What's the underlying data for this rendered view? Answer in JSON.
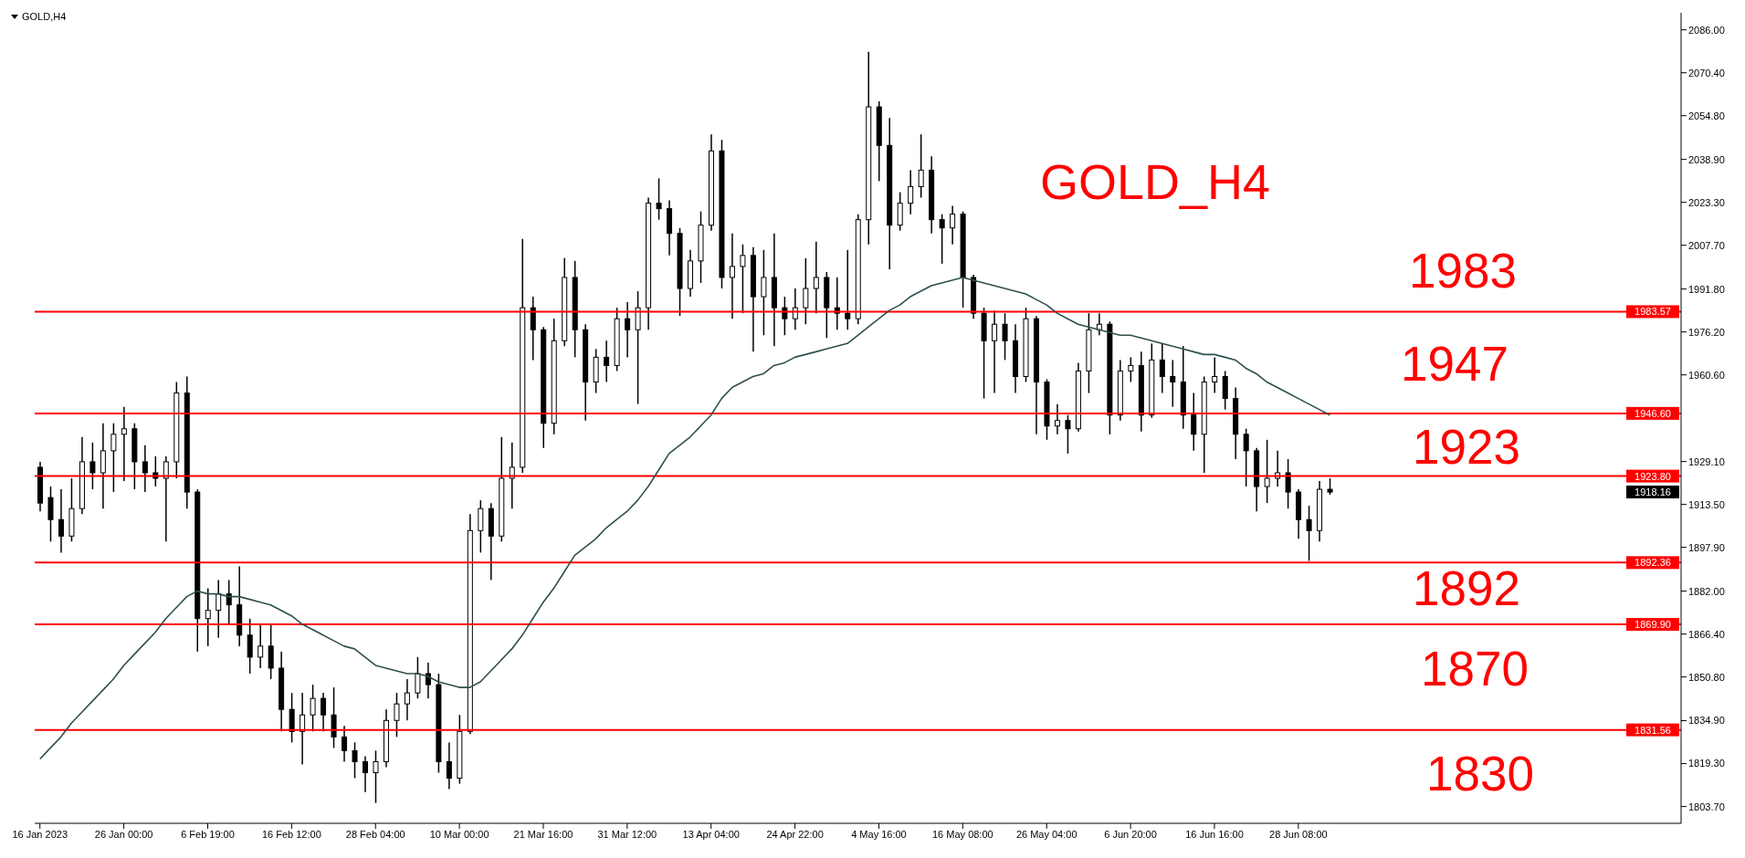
{
  "chart_data": {
    "type": "candlestick",
    "title": "GOLD,H4",
    "color": "#000000",
    "categories": [
      "16 Jan 2023",
      null,
      null,
      null,
      null,
      null,
      null,
      null,
      "26 Jan 00:00",
      null,
      null,
      null,
      null,
      null,
      null,
      null,
      "6 Feb 19:00",
      null,
      null,
      null,
      null,
      null,
      null,
      null,
      "16 Feb 12:00",
      null,
      null,
      null,
      null,
      null,
      null,
      null,
      "28 Feb 04:00",
      null,
      null,
      null,
      null,
      null,
      null,
      null,
      "10 Mar 00:00",
      null,
      null,
      null,
      null,
      null,
      null,
      null,
      "21 Mar 16:00",
      null,
      null,
      null,
      null,
      null,
      null,
      null,
      "31 Mar 12:00",
      null,
      null,
      null,
      null,
      null,
      null,
      null,
      "13 Apr 04:00",
      null,
      null,
      null,
      null,
      null,
      null,
      null,
      "24 Apr 22:00",
      null,
      null,
      null,
      null,
      null,
      null,
      null,
      "4 May 16:00",
      null,
      null,
      null,
      null,
      null,
      null,
      null,
      "16 May 08:00",
      null,
      null,
      null,
      null,
      null,
      null,
      null,
      "26 May 04:00",
      null,
      null,
      null,
      null,
      null,
      null,
      null,
      "6 Jun 20:00",
      null,
      null,
      null,
      null,
      null,
      null,
      null,
      "16 Jun 16:00",
      null,
      null,
      null,
      null,
      null,
      null,
      null,
      "28 Jun 08:00",
      null,
      null,
      null
    ],
    "ohlc": [
      [
        1927,
        1929,
        1911,
        1914
      ],
      [
        1916,
        1920,
        1900,
        1908
      ],
      [
        1908,
        1919,
        1896,
        1902
      ],
      [
        1902,
        1923,
        1900,
        1912
      ],
      [
        1912,
        1938,
        1910,
        1929
      ],
      [
        1929,
        1936,
        1919,
        1925
      ],
      [
        1925,
        1943,
        1912,
        1933
      ],
      [
        1933,
        1943,
        1918,
        1939
      ],
      [
        1939,
        1949,
        1922,
        1941
      ],
      [
        1941,
        1943,
        1919,
        1929
      ],
      [
        1929,
        1935,
        1918,
        1925
      ],
      [
        1925,
        1931,
        1920,
        1923
      ],
      [
        1923,
        1931,
        1900,
        1929
      ],
      [
        1929,
        1958,
        1923,
        1954
      ],
      [
        1954,
        1960,
        1912,
        1918
      ],
      [
        1918,
        1919,
        1860,
        1872
      ],
      [
        1872,
        1883,
        1862,
        1875
      ],
      [
        1875,
        1886,
        1865,
        1881
      ],
      [
        1881,
        1886,
        1870,
        1877
      ],
      [
        1877,
        1891,
        1862,
        1866
      ],
      [
        1866,
        1872,
        1852,
        1858
      ],
      [
        1858,
        1870,
        1854,
        1862
      ],
      [
        1862,
        1870,
        1850,
        1854
      ],
      [
        1854,
        1860,
        1831,
        1839
      ],
      [
        1839,
        1845,
        1827,
        1831
      ],
      [
        1831,
        1845,
        1819,
        1837
      ],
      [
        1837,
        1848,
        1831,
        1843
      ],
      [
        1843,
        1845,
        1831,
        1837
      ],
      [
        1837,
        1847,
        1825,
        1829
      ],
      [
        1829,
        1833,
        1820,
        1824
      ],
      [
        1824,
        1827,
        1814,
        1820
      ],
      [
        1820,
        1822,
        1809,
        1816
      ],
      [
        1816,
        1824,
        1805,
        1820
      ],
      [
        1820,
        1839,
        1818,
        1835
      ],
      [
        1835,
        1845,
        1829,
        1841
      ],
      [
        1841,
        1850,
        1835,
        1845
      ],
      [
        1845,
        1858,
        1843,
        1852
      ],
      [
        1852,
        1856,
        1843,
        1848
      ],
      [
        1848,
        1852,
        1816,
        1820
      ],
      [
        1820,
        1827,
        1810,
        1814
      ],
      [
        1814,
        1837,
        1812,
        1831
      ],
      [
        1831,
        1910,
        1830,
        1904
      ],
      [
        1904,
        1915,
        1896,
        1912
      ],
      [
        1912,
        1914,
        1886,
        1902
      ],
      [
        1902,
        1938,
        1900,
        1923
      ],
      [
        1923,
        1936,
        1912,
        1927
      ],
      [
        1927,
        2010,
        1925,
        1985
      ],
      [
        1985,
        1989,
        1966,
        1977
      ],
      [
        1977,
        1978,
        1934,
        1943
      ],
      [
        1943,
        1981,
        1939,
        1973
      ],
      [
        1973,
        2003,
        1971,
        1996
      ],
      [
        1996,
        2002,
        1967,
        1977
      ],
      [
        1977,
        1979,
        1944,
        1958
      ],
      [
        1958,
        1970,
        1954,
        1967
      ],
      [
        1967,
        1973,
        1958,
        1964
      ],
      [
        1964,
        1985,
        1962,
        1981
      ],
      [
        1981,
        1987,
        1967,
        1977
      ],
      [
        1977,
        1991,
        1950,
        1985
      ],
      [
        1985,
        2025,
        1977,
        2023
      ],
      [
        2023,
        2032,
        2017,
        2021
      ],
      [
        2021,
        2024,
        2004,
        2012
      ],
      [
        2012,
        2014,
        1982,
        1992
      ],
      [
        1992,
        2006,
        1989,
        2002
      ],
      [
        2002,
        2020,
        1994,
        2015
      ],
      [
        2015,
        2048,
        2013,
        2042
      ],
      [
        2042,
        2046,
        1992,
        1996
      ],
      [
        1996,
        2012,
        1981,
        2000
      ],
      [
        2000,
        2008,
        1983,
        2004
      ],
      [
        2004,
        2007,
        1969,
        1989
      ],
      [
        1989,
        2006,
        1975,
        1996
      ],
      [
        1996,
        2012,
        1971,
        1985
      ],
      [
        1985,
        1989,
        1975,
        1981
      ],
      [
        1981,
        1992,
        1977,
        1985
      ],
      [
        1985,
        2003,
        1979,
        1992
      ],
      [
        1992,
        2009,
        1983,
        1996
      ],
      [
        1996,
        1998,
        1974,
        1985
      ],
      [
        1985,
        1996,
        1977,
        1983
      ],
      [
        1983,
        2006,
        1977,
        1981
      ],
      [
        1981,
        2019,
        1979,
        2017
      ],
      [
        2017,
        2078,
        2008,
        2058
      ],
      [
        2058,
        2060,
        2031,
        2044
      ],
      [
        2044,
        2054,
        1999,
        2015
      ],
      [
        2015,
        2027,
        2013,
        2023
      ],
      [
        2023,
        2035,
        2019,
        2029
      ],
      [
        2029,
        2048,
        2025,
        2035
      ],
      [
        2035,
        2040,
        2012,
        2017
      ],
      [
        2017,
        2019,
        2001,
        2014
      ],
      [
        2014,
        2022,
        2008,
        2019
      ],
      [
        2019,
        2020,
        1985,
        1996
      ],
      [
        1996,
        1997,
        1981,
        1983
      ],
      [
        1983,
        1985,
        1952,
        1973
      ],
      [
        1973,
        1984,
        1954,
        1979
      ],
      [
        1979,
        1983,
        1966,
        1973
      ],
      [
        1973,
        1979,
        1954,
        1960
      ],
      [
        1960,
        1985,
        1958,
        1981
      ],
      [
        1981,
        1982,
        1939,
        1958
      ],
      [
        1958,
        1959,
        1937,
        1942
      ],
      [
        1942,
        1950,
        1939,
        1944
      ],
      [
        1944,
        1946,
        1932,
        1941
      ],
      [
        1941,
        1965,
        1940,
        1962
      ],
      [
        1962,
        1983,
        1954,
        1977
      ],
      [
        1977,
        1983,
        1975,
        1979
      ],
      [
        1979,
        1980,
        1939,
        1946
      ],
      [
        1946,
        1966,
        1944,
        1962
      ],
      [
        1962,
        1967,
        1958,
        1964
      ],
      [
        1964,
        1969,
        1940,
        1946
      ],
      [
        1946,
        1972,
        1945,
        1966
      ],
      [
        1966,
        1972,
        1954,
        1960
      ],
      [
        1960,
        1966,
        1949,
        1958
      ],
      [
        1958,
        1971,
        1941,
        1946
      ],
      [
        1946,
        1954,
        1933,
        1939
      ],
      [
        1939,
        1960,
        1925,
        1958
      ],
      [
        1958,
        1967,
        1954,
        1960
      ],
      [
        1960,
        1962,
        1948,
        1952
      ],
      [
        1952,
        1956,
        1930,
        1939
      ],
      [
        1939,
        1941,
        1920,
        1933
      ],
      [
        1933,
        1934,
        1911,
        1920
      ],
      [
        1920,
        1937,
        1914,
        1923
      ],
      [
        1923,
        1933,
        1920,
        1925
      ],
      [
        1925,
        1930,
        1912,
        1918
      ],
      [
        1918,
        1919,
        1901,
        1908
      ],
      [
        1908,
        1913,
        1893,
        1904
      ],
      [
        1904,
        1922,
        1900,
        1919
      ],
      [
        1919,
        1923,
        1917,
        1918
      ]
    ],
    "series": [
      {
        "type": "line",
        "color": "#2f4f4f",
        "values": [
          1821,
          1825,
          1829,
          1834,
          1838,
          1842,
          1846,
          1850,
          1855,
          1859,
          1863,
          1867,
          1872,
          1876,
          1880,
          1882,
          1881,
          1881,
          1880,
          1880,
          1879,
          1878,
          1877,
          1875,
          1873,
          1870,
          1868,
          1866,
          1864,
          1862,
          1861,
          1858,
          1855,
          1854,
          1853,
          1852,
          1852,
          1851,
          1849,
          1848,
          1847,
          1847,
          1849,
          1853,
          1857,
          1861,
          1866,
          1872,
          1878,
          1883,
          1889,
          1895,
          1898,
          1901,
          1905,
          1908,
          1911,
          1915,
          1920,
          1926,
          1932,
          1935,
          1938,
          1942,
          1946,
          1952,
          1956,
          1958,
          1960,
          1961,
          1964,
          1965,
          1967,
          1968,
          1969,
          1970,
          1971,
          1972,
          1975,
          1978,
          1981,
          1984,
          1986,
          1989,
          1991,
          1993,
          1994,
          1995,
          1996,
          1995,
          1994,
          1993,
          1992,
          1991,
          1990,
          1988,
          1986,
          1983,
          1981,
          1979,
          1978,
          1977,
          1976,
          1975,
          1975,
          1974,
          1973,
          1972,
          1971,
          1970,
          1969,
          1968,
          1968,
          1967,
          1966,
          1963,
          1961,
          1958,
          1956,
          1954,
          1952,
          1950,
          1948,
          1946
        ]
      }
    ],
    "ylim": [
      1797.6,
      2092.2
    ],
    "yticks": [
      {
        "value": 1803.7,
        "label": "1803.70"
      },
      {
        "value": 1819.3,
        "label": "1819.30"
      },
      {
        "value": 1834.9,
        "label": "1834.90"
      },
      {
        "value": 1850.8,
        "label": "1850.80"
      },
      {
        "value": 1866.4,
        "label": "1866.40"
      },
      {
        "value": 1882,
        "label": "1882.00"
      },
      {
        "value": 1897.9,
        "label": "1897.90"
      },
      {
        "value": 1913.5,
        "label": "1913.50"
      },
      {
        "value": 1929.1,
        "label": "1929.10"
      },
      {
        "value": 1960.6,
        "label": "1960.60"
      },
      {
        "value": 1976.2,
        "label": "1976.20"
      },
      {
        "value": 1991.8,
        "label": "1991.80"
      },
      {
        "value": 2007.7,
        "label": "2007.70"
      },
      {
        "value": 2023.3,
        "label": "2023.30"
      },
      {
        "value": 2038.9,
        "label": "2038.90"
      },
      {
        "value": 2054.8,
        "label": "2054.80"
      },
      {
        "value": 2070.4,
        "label": "2070.40"
      },
      {
        "value": 2086,
        "label": "2086.00"
      }
    ],
    "ref_lines": [
      {
        "axis": "y",
        "value": 1983.57,
        "label": "1983.57",
        "color": "#ff0000"
      },
      {
        "axis": "y",
        "value": 1946.6,
        "label": "1946.60",
        "color": "#ff0000"
      },
      {
        "axis": "y",
        "value": 1923.8,
        "label": "1923.80",
        "color": "#ff0000"
      },
      {
        "axis": "y",
        "value": 1892.36,
        "label": "1892.36",
        "color": "#ff0000"
      },
      {
        "axis": "y",
        "value": 1869.9,
        "label": "1869.90",
        "color": "#ff0000"
      },
      {
        "axis": "y",
        "value": 1831.56,
        "label": "1831.56",
        "color": "#ff0000"
      }
    ],
    "annotations": [
      "GOLD_H4",
      "1983",
      "1947",
      "1923",
      "1892",
      "1870",
      "1830",
      "1918.16"
    ]
  }
}
